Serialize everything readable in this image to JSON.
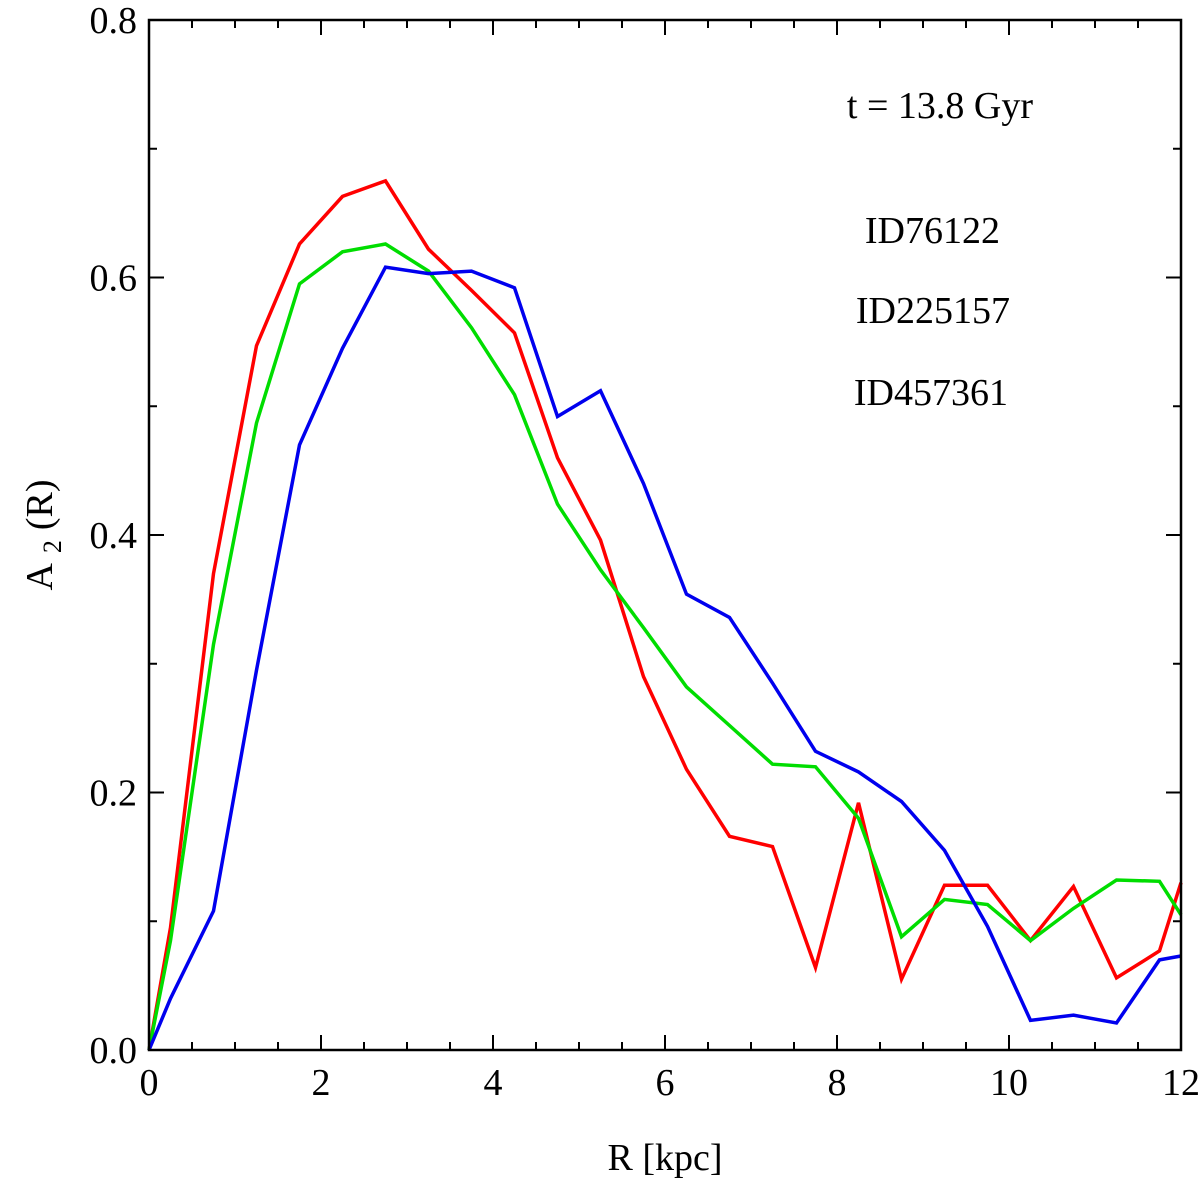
{
  "chart_data": {
    "type": "line",
    "title": "",
    "xlabel": "R [kpc]",
    "ylabel_main": "A",
    "ylabel_sub": "2",
    "ylabel_tail": "(R)",
    "xlim": [
      0,
      12
    ],
    "ylim": [
      0,
      0.8
    ],
    "x_major_ticks": [
      0,
      2,
      4,
      6,
      8,
      10,
      12
    ],
    "x_tick_labels": [
      "0",
      "2",
      "4",
      "6",
      "8",
      "10",
      "12"
    ],
    "y_major_ticks": [
      0.0,
      0.2,
      0.4,
      0.6,
      0.8
    ],
    "y_tick_labels": [
      "0.0",
      "0.2",
      "0.4",
      "0.6",
      "0.8"
    ],
    "x_minor_step": 0.5,
    "y_minor_step": 0.1,
    "grid": false,
    "annotation": "t = 13.8 Gyr",
    "legend_position": "top-right",
    "series": [
      {
        "name": "ID76122",
        "color": "#ff0000",
        "x": [
          0,
          0.25,
          0.75,
          1.25,
          1.75,
          2.25,
          2.75,
          3.25,
          3.75,
          4.25,
          4.75,
          5.25,
          5.75,
          6.25,
          6.75,
          7.25,
          7.75,
          8.25,
          8.75,
          9.25,
          9.75,
          10.25,
          10.75,
          11.25,
          11.75,
          12
        ],
        "y": [
          0.0,
          0.095,
          0.37,
          0.547,
          0.626,
          0.663,
          0.675,
          0.622,
          0.59,
          0.557,
          0.46,
          0.396,
          0.29,
          0.218,
          0.166,
          0.158,
          0.064,
          0.192,
          0.055,
          0.128,
          0.128,
          0.085,
          0.127,
          0.056,
          0.077,
          0.13
        ]
      },
      {
        "name": "ID225157",
        "color": "#00dd00",
        "x": [
          0,
          0.25,
          0.75,
          1.25,
          1.75,
          2.25,
          2.75,
          3.25,
          3.75,
          4.25,
          4.75,
          5.25,
          5.75,
          6.25,
          6.75,
          7.25,
          7.75,
          8.25,
          8.75,
          9.25,
          9.75,
          10.25,
          10.75,
          11.25,
          11.75,
          12
        ],
        "y": [
          0.0,
          0.085,
          0.315,
          0.487,
          0.595,
          0.62,
          0.626,
          0.605,
          0.561,
          0.509,
          0.424,
          0.373,
          0.328,
          0.282,
          0.252,
          0.222,
          0.22,
          0.18,
          0.088,
          0.117,
          0.113,
          0.085,
          0.11,
          0.132,
          0.131,
          0.105
        ]
      },
      {
        "name": "ID457361",
        "color": "#0000ee",
        "x": [
          0,
          0.25,
          0.75,
          1.25,
          1.75,
          2.25,
          2.75,
          3.25,
          3.75,
          4.25,
          4.75,
          5.25,
          5.75,
          6.25,
          6.75,
          7.25,
          7.75,
          8.25,
          8.75,
          9.25,
          9.75,
          10.25,
          10.75,
          11.25,
          11.75,
          12
        ],
        "y": [
          0.0,
          0.04,
          0.108,
          0.295,
          0.47,
          0.545,
          0.608,
          0.603,
          0.605,
          0.592,
          0.492,
          0.512,
          0.44,
          0.354,
          0.336,
          0.285,
          0.232,
          0.216,
          0.193,
          0.155,
          0.096,
          0.023,
          0.027,
          0.021,
          0.07,
          0.073
        ]
      }
    ]
  }
}
